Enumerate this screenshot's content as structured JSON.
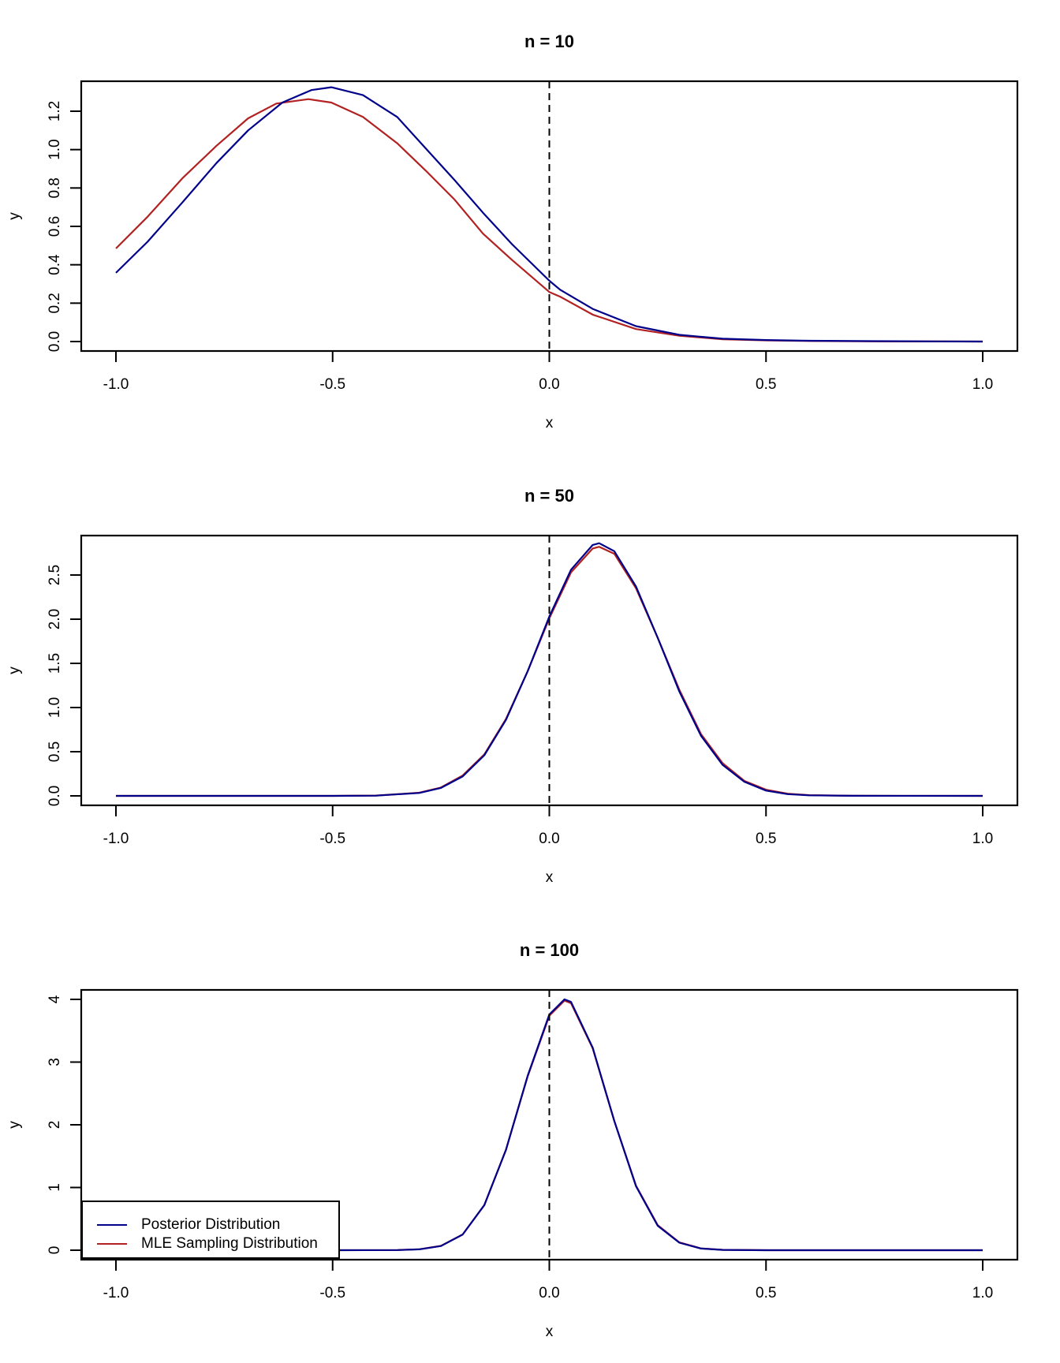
{
  "figure": {
    "colors": {
      "posterior": "#00008B",
      "mle": "#B22222",
      "axis": "#000000",
      "reference_line": "#000000"
    },
    "legend": {
      "items": [
        {
          "label": "Posterior Distribution",
          "color": "#00008B"
        },
        {
          "label": "MLE Sampling Distribution",
          "color": "#B22222"
        }
      ]
    }
  },
  "chart_data": [
    {
      "type": "line",
      "title": "n = 10",
      "xlabel": "x",
      "ylabel": "y",
      "xlim": [
        -1.0,
        1.0
      ],
      "ylim": [
        0.0,
        1.33
      ],
      "xticks": [
        "-1.0",
        "-0.5",
        "0.0",
        "0.5",
        "1.0"
      ],
      "xtick_values": [
        -1.0,
        -0.5,
        0.0,
        0.5,
        1.0
      ],
      "yticks": [
        "0.0",
        "0.2",
        "0.4",
        "0.6",
        "0.8",
        "1.0",
        "1.2"
      ],
      "ytick_values": [
        0.0,
        0.2,
        0.4,
        0.6,
        0.8,
        1.0,
        1.2
      ],
      "grid": false,
      "reference_line": {
        "type": "vertical",
        "x": 0.0,
        "style": "dashed"
      },
      "series": [
        {
          "name": "Posterior Distribution",
          "color": "#00008B",
          "x": [
            -1.0,
            -0.927,
            -0.847,
            -0.768,
            -0.695,
            -0.616,
            -0.549,
            -0.503,
            -0.43,
            -0.351,
            -0.285,
            -0.219,
            -0.153,
            -0.086,
            0.0,
            0.025,
            0.1,
            0.2,
            0.3,
            0.4,
            0.5,
            0.6,
            0.75,
            0.9,
            1.0
          ],
          "y": [
            0.358,
            0.52,
            0.724,
            0.93,
            1.1,
            1.245,
            1.31,
            1.325,
            1.284,
            1.17,
            1.006,
            0.842,
            0.671,
            0.507,
            0.317,
            0.27,
            0.17,
            0.08,
            0.035,
            0.015,
            0.008,
            0.004,
            0.002,
            0.001,
            0.0
          ]
        },
        {
          "name": "MLE Sampling Distribution",
          "color": "#B22222",
          "x": [
            -1.0,
            -0.927,
            -0.847,
            -0.768,
            -0.695,
            -0.63,
            -0.556,
            -0.503,
            -0.43,
            -0.351,
            -0.285,
            -0.219,
            -0.153,
            -0.086,
            0.0,
            0.025,
            0.1,
            0.2,
            0.3,
            0.4,
            0.5,
            0.6,
            0.75,
            0.9,
            1.0
          ],
          "y": [
            0.485,
            0.65,
            0.85,
            1.02,
            1.163,
            1.24,
            1.263,
            1.245,
            1.17,
            1.033,
            0.89,
            0.74,
            0.562,
            0.425,
            0.258,
            0.234,
            0.14,
            0.065,
            0.03,
            0.012,
            0.006,
            0.003,
            0.001,
            0.0005,
            0.0
          ]
        }
      ]
    },
    {
      "type": "line",
      "title": "n = 50",
      "xlabel": "x",
      "ylabel": "y",
      "xlim": [
        -1.0,
        1.0
      ],
      "ylim": [
        0.0,
        2.86
      ],
      "xticks": [
        "-1.0",
        "-0.5",
        "0.0",
        "0.5",
        "1.0"
      ],
      "xtick_values": [
        -1.0,
        -0.5,
        0.0,
        0.5,
        1.0
      ],
      "yticks": [
        "0.0",
        "0.5",
        "1.0",
        "1.5",
        "2.0",
        "2.5"
      ],
      "ytick_values": [
        0.0,
        0.5,
        1.0,
        1.5,
        2.0,
        2.5
      ],
      "grid": false,
      "reference_line": {
        "type": "vertical",
        "x": 0.0,
        "style": "dashed"
      },
      "series": [
        {
          "name": "Posterior Distribution",
          "color": "#00008B",
          "x": [
            -1.0,
            -0.5,
            -0.4,
            -0.3,
            -0.25,
            -0.2,
            -0.15,
            -0.1,
            -0.05,
            0.0,
            0.05,
            0.1,
            0.115,
            0.15,
            0.2,
            0.25,
            0.3,
            0.35,
            0.4,
            0.45,
            0.5,
            0.55,
            0.6,
            0.7,
            1.0
          ],
          "y": [
            0.0,
            0.0,
            0.003,
            0.033,
            0.09,
            0.22,
            0.46,
            0.86,
            1.41,
            2.03,
            2.56,
            2.84,
            2.86,
            2.77,
            2.37,
            1.79,
            1.18,
            0.68,
            0.35,
            0.16,
            0.06,
            0.02,
            0.006,
            0.001,
            0.0
          ]
        },
        {
          "name": "MLE Sampling Distribution",
          "color": "#B22222",
          "x": [
            -1.0,
            -0.5,
            -0.4,
            -0.3,
            -0.25,
            -0.2,
            -0.15,
            -0.1,
            -0.05,
            0.0,
            0.05,
            0.1,
            0.115,
            0.15,
            0.2,
            0.25,
            0.3,
            0.35,
            0.4,
            0.45,
            0.5,
            0.55,
            0.6,
            0.7,
            1.0
          ],
          "y": [
            0.0,
            0.0,
            0.004,
            0.036,
            0.095,
            0.23,
            0.47,
            0.87,
            1.41,
            2.01,
            2.53,
            2.8,
            2.82,
            2.74,
            2.35,
            1.79,
            1.2,
            0.7,
            0.37,
            0.17,
            0.07,
            0.025,
            0.008,
            0.001,
            0.0
          ]
        }
      ]
    },
    {
      "type": "line",
      "title": "n = 100",
      "xlabel": "x",
      "ylabel": "y",
      "xlim": [
        -1.0,
        1.0
      ],
      "ylim": [
        0.0,
        4.0
      ],
      "xticks": [
        "-1.0",
        "-0.5",
        "0.0",
        "0.5",
        "1.0"
      ],
      "xtick_values": [
        -1.0,
        -0.5,
        0.0,
        0.5,
        1.0
      ],
      "yticks": [
        "0",
        "1",
        "2",
        "3",
        "4"
      ],
      "ytick_values": [
        0,
        1,
        2,
        3,
        4
      ],
      "grid": false,
      "legend_position": "bottomleft",
      "reference_line": {
        "type": "vertical",
        "x": 0.0,
        "style": "dashed"
      },
      "series": [
        {
          "name": "Posterior Distribution",
          "color": "#00008B",
          "x": [
            -1.0,
            -0.5,
            -0.35,
            -0.3,
            -0.25,
            -0.2,
            -0.15,
            -0.1,
            -0.05,
            0.0,
            0.035,
            0.05,
            0.1,
            0.15,
            0.2,
            0.25,
            0.3,
            0.35,
            0.4,
            0.5,
            1.0
          ],
          "y": [
            0.0,
            0.0,
            0.002,
            0.014,
            0.067,
            0.25,
            0.72,
            1.6,
            2.78,
            3.76,
            4.0,
            3.96,
            3.23,
            2.06,
            1.02,
            0.39,
            0.12,
            0.027,
            0.005,
            0.0,
            0.0
          ]
        },
        {
          "name": "MLE Sampling Distribution",
          "color": "#B22222",
          "x": [
            -1.0,
            -0.5,
            -0.35,
            -0.3,
            -0.25,
            -0.2,
            -0.15,
            -0.1,
            -0.05,
            0.0,
            0.035,
            0.05,
            0.1,
            0.15,
            0.2,
            0.25,
            0.3,
            0.35,
            0.4,
            0.5,
            1.0
          ],
          "y": [
            0.0,
            0.0,
            0.002,
            0.015,
            0.069,
            0.25,
            0.72,
            1.6,
            2.77,
            3.74,
            3.98,
            3.94,
            3.22,
            2.06,
            1.03,
            0.4,
            0.125,
            0.029,
            0.006,
            0.0,
            0.0
          ]
        }
      ]
    }
  ]
}
